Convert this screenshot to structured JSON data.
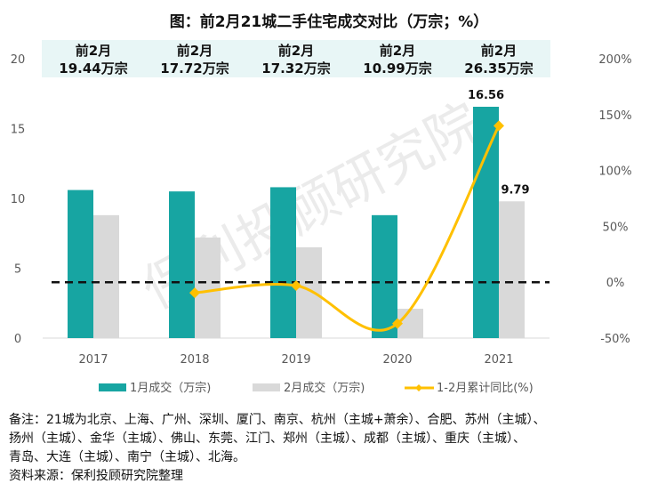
{
  "chart_data": {
    "type": "bar+line",
    "title": "图：前2月21城二手住宅成交对比（万宗；%）",
    "categories": [
      "2017",
      "2018",
      "2019",
      "2020",
      "2021"
    ],
    "series": [
      {
        "name": "1月成交（万宗)",
        "axis": "left",
        "type": "bar",
        "color": "#17A5A2",
        "values": [
          10.6,
          10.5,
          10.8,
          8.8,
          16.56
        ]
      },
      {
        "name": "2月成交（万宗)",
        "axis": "left",
        "type": "bar",
        "color": "#D9D9D9",
        "values": [
          8.8,
          7.2,
          6.5,
          2.1,
          9.79
        ]
      },
      {
        "name": "1-2月累计同比(%)",
        "axis": "right",
        "type": "line",
        "color": "#FFC000",
        "values": [
          null,
          -9.5,
          -3,
          -37,
          140
        ]
      }
    ],
    "data_labels": [
      {
        "series": 0,
        "index": 4,
        "text": "16.56"
      },
      {
        "series": 1,
        "index": 4,
        "text": "9.79"
      }
    ],
    "top_boxes": [
      {
        "line1": "前2月",
        "line2": "19.44万宗"
      },
      {
        "line1": "前2月",
        "line2": "17.72万宗"
      },
      {
        "line1": "前2月",
        "line2": "17.32万宗"
      },
      {
        "line1": "前2月",
        "line2": "10.99万宗"
      },
      {
        "line1": "前2月",
        "line2": "26.35万宗"
      }
    ],
    "left_axis": {
      "ylim": [
        0,
        20
      ],
      "ticks": [
        "0",
        "5",
        "10",
        "15",
        "20"
      ]
    },
    "right_axis": {
      "ylim": [
        -50,
        200
      ],
      "ticks": [
        "-50%",
        "0%",
        "50%",
        "100%",
        "150%",
        "200%"
      ]
    },
    "reference_line": {
      "value_right_axis": 0,
      "style": "dashed"
    },
    "legend_placement": "bottom",
    "watermark": "保利投顾研究院"
  },
  "notes": {
    "line1": "备注：21城为北京、上海、广州、深圳、厦门、南京、杭州（主城+萧余）、合肥、苏州（主城）、",
    "line2": "扬州（主城）、金华（主城）、佛山、东莞、江门、郑州（主城）、成都（主城）、重庆（主城）、",
    "line3": "青岛、大连（主城）、南宁（主城）、北海。",
    "source": "资料来源：保利投顾研究院整理"
  }
}
